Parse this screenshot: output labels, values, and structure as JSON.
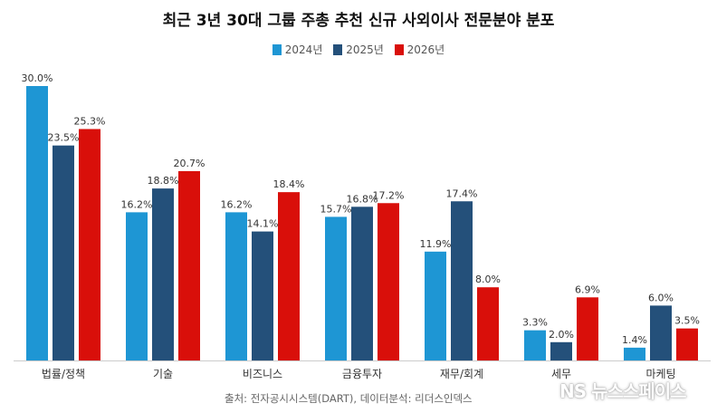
{
  "chart_data": {
    "type": "bar",
    "title": "최근 3년 30대 그룹 주총 추천 신규 사외이사 전문분야 분포",
    "categories": [
      "법률/정책",
      "기술",
      "비즈니스",
      "금융투자",
      "재무/회계",
      "세무",
      "마케팅"
    ],
    "series": [
      {
        "name": "2024년",
        "color": "#1e96d4",
        "values": [
          30.0,
          16.2,
          16.2,
          15.7,
          11.9,
          3.3,
          1.4
        ]
      },
      {
        "name": "2025년",
        "color": "#24507a",
        "values": [
          23.5,
          18.8,
          14.1,
          16.8,
          17.4,
          2.0,
          6.0
        ]
      },
      {
        "name": "2026년",
        "color": "#d90f0a",
        "values": [
          25.3,
          20.7,
          18.4,
          17.2,
          8.0,
          6.9,
          3.5
        ]
      }
    ],
    "ylim": [
      0,
      30
    ],
    "grid": false,
    "legend_placement": "top-center",
    "value_suffix": "%"
  },
  "source": "출처: 전자공시시스템(DART), 데이터분석: 리더스인덱스",
  "watermark": "NS 뉴스스페이스"
}
